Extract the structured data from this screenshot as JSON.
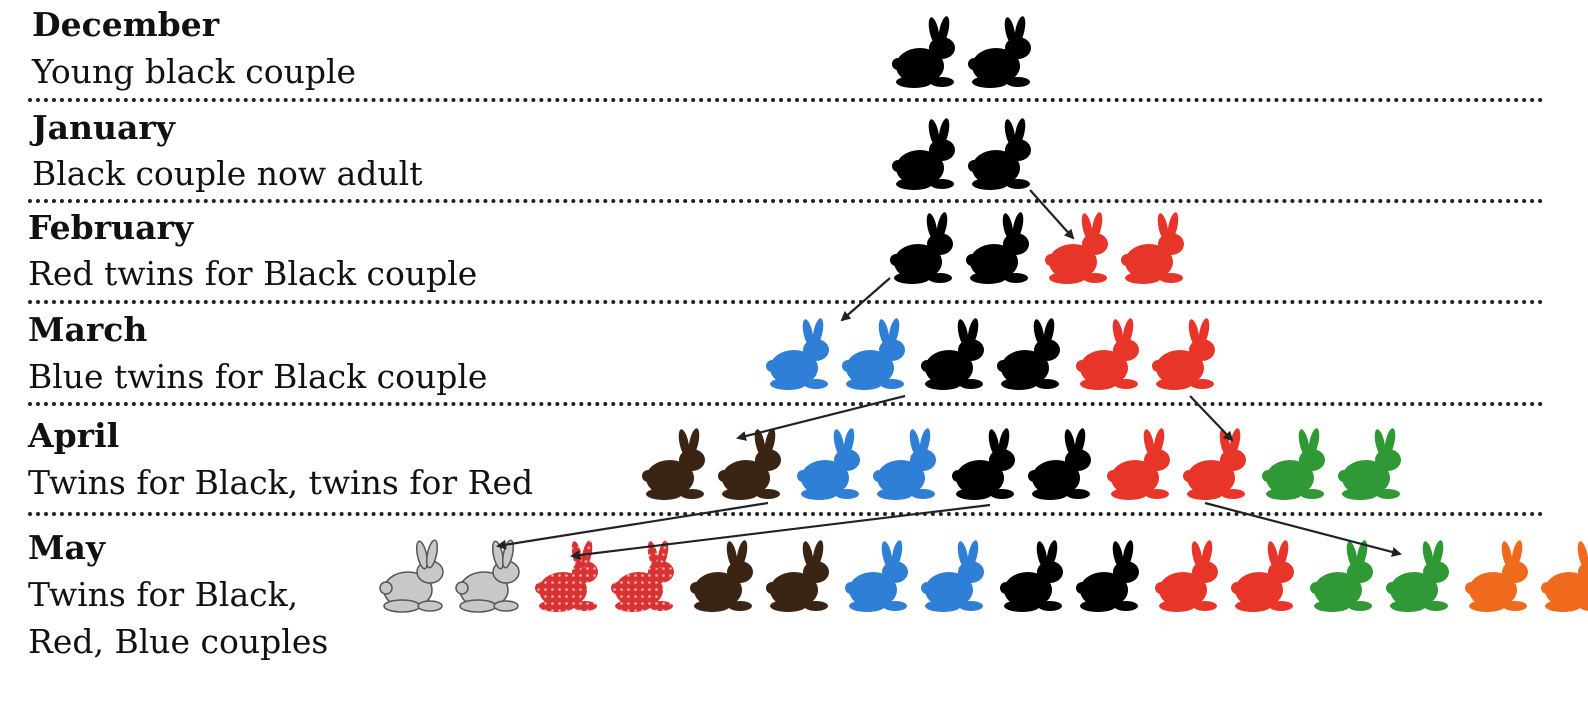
{
  "rows": [
    {
      "month": "December",
      "desc": [
        "Young black couple"
      ]
    },
    {
      "month": "January",
      "desc": [
        "Black couple now adult"
      ]
    },
    {
      "month": "February",
      "desc": [
        "Red twins for Black couple"
      ]
    },
    {
      "month": "March",
      "desc": [
        "Blue twins for Black couple"
      ]
    },
    {
      "month": "April",
      "desc": [
        "Twins for Black, twins for Red"
      ]
    },
    {
      "month": "May",
      "desc": [
        "Twins for Black,",
        "Red, Blue couples"
      ]
    }
  ],
  "colors": {
    "black": "#000000",
    "red": "#e8352a",
    "blue": "#2f7fd6",
    "green": "#2f9a35",
    "brown": "#3a2414",
    "orange": "#f06a1e",
    "grey": "#c8c8c8",
    "pink_dotted": "#d93232"
  },
  "pairs": [
    {
      "row": 0,
      "color": "black"
    },
    {
      "row": 1,
      "color": "black"
    },
    {
      "row": 2,
      "color": "black"
    },
    {
      "row": 2,
      "color": "red"
    },
    {
      "row": 3,
      "color": "blue"
    },
    {
      "row": 3,
      "color": "black"
    },
    {
      "row": 3,
      "color": "red"
    },
    {
      "row": 4,
      "color": "brown"
    },
    {
      "row": 4,
      "color": "blue"
    },
    {
      "row": 4,
      "color": "black"
    },
    {
      "row": 4,
      "color": "red"
    },
    {
      "row": 4,
      "color": "green"
    },
    {
      "row": 5,
      "color": "grey"
    },
    {
      "row": 5,
      "color": "pink_dotted"
    },
    {
      "row": 5,
      "color": "brown"
    },
    {
      "row": 5,
      "color": "blue"
    },
    {
      "row": 5,
      "color": "black"
    },
    {
      "row": 5,
      "color": "red"
    },
    {
      "row": 5,
      "color": "green"
    },
    {
      "row": 5,
      "color": "orange"
    }
  ]
}
